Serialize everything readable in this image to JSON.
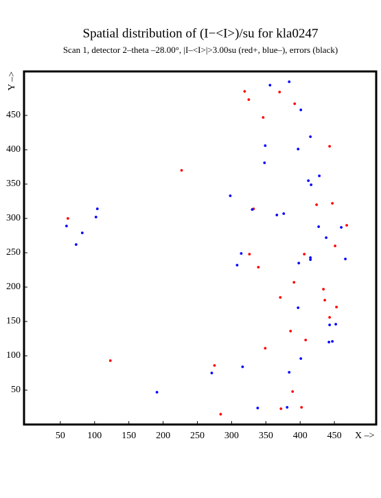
{
  "chart_data": {
    "type": "scatter",
    "title": "Spatial distribution of (I−<I>)/su for kla0247",
    "subtitle": "Scan  1, detector 2–theta –28.00°, |I–<I>|>3.00su (red+, blue–), errors (black)",
    "x_label": "X –>",
    "y_label": "Y –>",
    "xlim": [
      -3,
      511
    ],
    "ylim": [
      0,
      514
    ],
    "xticks": [
      50,
      100,
      150,
      200,
      250,
      300,
      350,
      400,
      450
    ],
    "yticks": [
      50,
      100,
      150,
      200,
      250,
      300,
      350,
      400,
      450
    ],
    "series": [
      {
        "color": "#ff0000",
        "x": [
          319,
          325,
          370,
          392,
          346,
          443,
          227,
          61,
          332,
          424,
          447,
          468,
          326,
          406,
          451,
          339,
          391,
          434,
          371,
          436,
          453,
          443,
          386,
          408,
          349,
          123,
          275,
          389,
          284,
          372,
          402
        ],
        "values": [
          485,
          473,
          484,
          467,
          447,
          405,
          370,
          300,
          314,
          320,
          322,
          290,
          248,
          248,
          260,
          229,
          207,
          197,
          185,
          181,
          171,
          156,
          136,
          123,
          111,
          93,
          86,
          48,
          15,
          23,
          25
        ]
      },
      {
        "color": "#0000ff",
        "x": [
          356,
          384,
          401,
          415,
          349,
          397,
          348,
          428,
          412,
          416,
          298,
          330,
          104,
          102,
          366,
          376,
          59,
          82,
          73,
          427,
          460,
          438,
          314,
          415,
          415,
          466,
          308,
          398,
          397,
          443,
          452,
          442,
          447,
          401,
          316,
          271,
          384,
          191,
          338,
          381
        ],
        "values": [
          494,
          499,
          458,
          419,
          406,
          401,
          381,
          362,
          355,
          349,
          333,
          313,
          314,
          302,
          305,
          307,
          289,
          279,
          262,
          288,
          287,
          272,
          249,
          243,
          240,
          241,
          232,
          235,
          170,
          145,
          146,
          120,
          121,
          96,
          84,
          75,
          76,
          47,
          24,
          25
        ]
      }
    ]
  }
}
